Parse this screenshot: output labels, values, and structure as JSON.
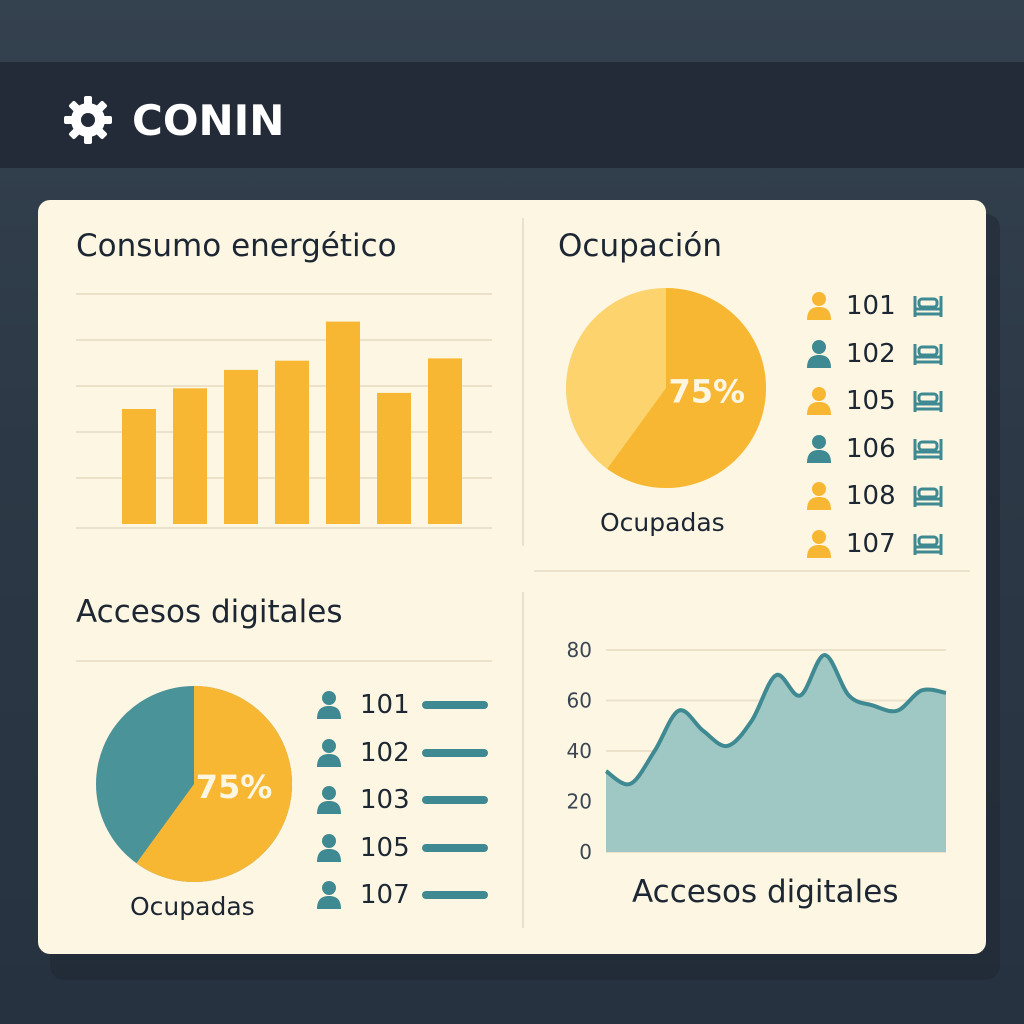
{
  "app": {
    "brand": "CONIN"
  },
  "energy": {
    "title": "Consumo energético",
    "chart_data": {
      "type": "bar",
      "categories": [
        "",
        "",
        "",
        "",
        "",
        "",
        ""
      ],
      "values": [
        50,
        59,
        67,
        71,
        88,
        57,
        72
      ],
      "ylim": [
        0,
        100
      ],
      "grid": true,
      "color": "#f7b733"
    }
  },
  "occupancy": {
    "title": "Ocupación",
    "chart_data": {
      "type": "pie",
      "values": [
        75,
        25
      ],
      "colors": [
        "#f7b733",
        "#fcd36d"
      ],
      "data_label": "75%",
      "caption": "Ocupadas"
    },
    "rooms": [
      {
        "number": "101",
        "person_color": "#f7b733"
      },
      {
        "number": "102",
        "person_color": "#3f8a92"
      },
      {
        "number": "105",
        "person_color": "#f7b733"
      },
      {
        "number": "106",
        "person_color": "#3f8a92"
      },
      {
        "number": "108",
        "person_color": "#f7b733"
      },
      {
        "number": "107",
        "person_color": "#f7b733"
      }
    ],
    "bed_color": "#3f8a92"
  },
  "access": {
    "title": "Accesos digitales",
    "chart_data": {
      "type": "pie",
      "values": [
        75,
        25
      ],
      "colors": [
        "#f7b733",
        "#4a9399"
      ],
      "data_label": "75%",
      "caption": "Ocupadas"
    },
    "rooms": [
      {
        "number": "101"
      },
      {
        "number": "102"
      },
      {
        "number": "103"
      },
      {
        "number": "105"
      },
      {
        "number": "107"
      }
    ],
    "accent": "#3f8a92"
  },
  "access_trend": {
    "chart_data": {
      "type": "area",
      "x": [
        0,
        1,
        2,
        3,
        4,
        5,
        6,
        7,
        8,
        9,
        10,
        11,
        12,
        13,
        14
      ],
      "y": [
        32,
        27,
        40,
        56,
        48,
        42,
        52,
        70,
        62,
        78,
        62,
        58,
        56,
        64,
        63
      ],
      "ylim": [
        0,
        80
      ],
      "yticks": [
        "0",
        "20",
        "40",
        "60",
        "80"
      ],
      "xlabel": "Accesos digitales",
      "grid": true,
      "line_color": "#3f8a92",
      "fill_color": "#9fc7c3"
    }
  }
}
